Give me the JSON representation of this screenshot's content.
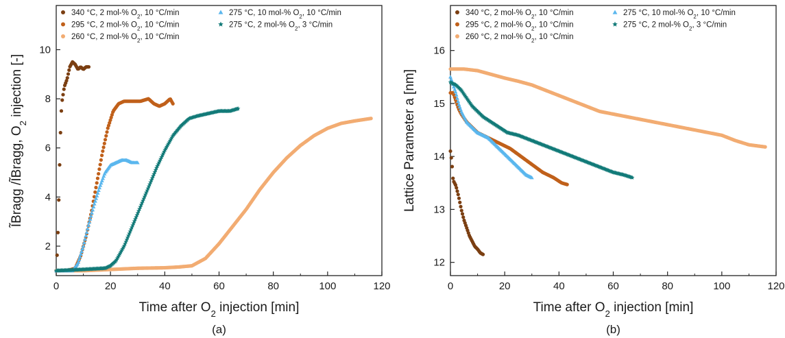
{
  "chart_data": [
    {
      "type": "scatter",
      "panel_label": "(a)",
      "xlabel": "Time after O₂ injection [min]",
      "ylabel": "ĨBragg /ĨBragg, O₂ injection [-]",
      "xlim": [
        0,
        120
      ],
      "ylim": [
        0.8,
        11.8
      ],
      "x_ticks": [
        0,
        20,
        40,
        60,
        80,
        100,
        120
      ],
      "y_ticks": [
        2,
        4,
        6,
        8,
        10
      ],
      "grid": false,
      "legend_position": "top-left",
      "series": [
        {
          "name": "340 °C, 2 mol-% O₂,  10 °C/min",
          "color": "#7b3f12",
          "marker": "circle",
          "x": [
            0,
            0.5,
            1,
            1.5,
            2,
            3,
            4,
            5,
            6,
            7,
            8,
            9,
            10,
            11,
            12
          ],
          "y": [
            1.0,
            2.0,
            4.1,
            6.4,
            7.8,
            8.5,
            8.8,
            9.3,
            9.5,
            9.4,
            9.2,
            9.3,
            9.2,
            9.3,
            9.3
          ]
        },
        {
          "name": "295 °C, 2 mol-% O₂,  10 °C/min",
          "color": "#c0601a",
          "marker": "circle",
          "x": [
            0,
            4,
            7,
            9,
            11,
            13,
            15,
            17,
            19,
            21,
            23,
            25,
            28,
            31,
            34,
            36,
            38,
            40,
            42,
            43
          ],
          "y": [
            1.0,
            1.0,
            1.1,
            1.6,
            2.4,
            3.4,
            4.6,
            5.8,
            6.8,
            7.5,
            7.8,
            7.9,
            7.9,
            7.9,
            8.0,
            7.8,
            7.7,
            7.8,
            8.0,
            7.8
          ]
        },
        {
          "name": "260 °C, 2 mol-% O₂,  10 °C/min",
          "color": "#f2ac72",
          "marker": "circle",
          "x": [
            0,
            10,
            20,
            30,
            40,
            45,
            50,
            55,
            60,
            65,
            70,
            75,
            80,
            85,
            90,
            95,
            100,
            105,
            110,
            116
          ],
          "y": [
            1.0,
            1.0,
            1.05,
            1.1,
            1.12,
            1.15,
            1.2,
            1.5,
            2.1,
            2.8,
            3.5,
            4.3,
            5.0,
            5.6,
            6.1,
            6.5,
            6.8,
            7.0,
            7.1,
            7.2
          ]
        },
        {
          "name": "275 °C, 10 mol-% O₂, 10 °C/min",
          "color": "#5ab7ee",
          "marker": "triangle",
          "x": [
            0,
            3,
            6,
            8,
            10,
            12,
            14,
            16,
            18,
            20,
            22,
            24,
            26,
            28,
            30
          ],
          "y": [
            1.0,
            1.0,
            1.0,
            1.3,
            2.0,
            2.9,
            3.7,
            4.4,
            5.0,
            5.3,
            5.4,
            5.5,
            5.5,
            5.4,
            5.4
          ]
        },
        {
          "name": "275 °C,   2 mol-% O₂,   3 °C/min",
          "color": "#127a78",
          "marker": "star",
          "x": [
            0,
            10,
            18,
            20,
            22,
            25,
            28,
            31,
            34,
            37,
            40,
            43,
            46,
            49,
            52,
            56,
            60,
            64,
            67
          ],
          "y": [
            1.0,
            1.05,
            1.1,
            1.2,
            1.4,
            2.0,
            2.8,
            3.6,
            4.4,
            5.2,
            5.9,
            6.5,
            6.9,
            7.2,
            7.3,
            7.4,
            7.5,
            7.5,
            7.6
          ]
        }
      ]
    },
    {
      "type": "scatter",
      "panel_label": "(b)",
      "xlabel": "Time after O₂ injection [min]",
      "ylabel": "Lattice Parameter a [nm]",
      "xlim": [
        0,
        120
      ],
      "ylim": [
        11.75,
        16.85
      ],
      "x_ticks": [
        0,
        20,
        40,
        60,
        80,
        100,
        120
      ],
      "y_ticks": [
        12,
        13,
        14,
        15,
        16
      ],
      "grid": false,
      "legend_position": "top-left",
      "series": [
        {
          "name": "340 °C, 2 mol-% O₂,  10 °C/min",
          "color": "#7b3f12",
          "marker": "circle",
          "x": [
            0,
            0.5,
            1,
            2,
            3,
            4,
            5,
            6,
            7,
            8,
            9,
            10,
            11,
            12
          ],
          "y": [
            14.1,
            13.9,
            13.55,
            13.45,
            13.25,
            13.0,
            12.8,
            12.65,
            12.5,
            12.4,
            12.3,
            12.25,
            12.18,
            12.15
          ]
        },
        {
          "name": "295 °C, 2 mol-% O₂,  10 °C/min",
          "color": "#c0601a",
          "marker": "circle",
          "x": [
            0,
            1,
            2,
            3,
            4,
            6,
            8,
            10,
            14,
            18,
            22,
            26,
            30,
            34,
            38,
            41,
            43
          ],
          "y": [
            15.2,
            15.2,
            15.05,
            14.9,
            14.8,
            14.65,
            14.55,
            14.45,
            14.35,
            14.25,
            14.15,
            14.0,
            13.85,
            13.7,
            13.6,
            13.5,
            13.47
          ]
        },
        {
          "name": "260 °C, 2 mol-% O₂,  10 °C/min",
          "color": "#f2ac72",
          "marker": "circle",
          "x": [
            0,
            5,
            10,
            15,
            20,
            25,
            30,
            35,
            40,
            45,
            50,
            55,
            60,
            65,
            70,
            75,
            80,
            85,
            90,
            95,
            100,
            105,
            110,
            116
          ],
          "y": [
            15.65,
            15.65,
            15.62,
            15.55,
            15.48,
            15.42,
            15.35,
            15.25,
            15.15,
            15.05,
            14.95,
            14.85,
            14.8,
            14.75,
            14.7,
            14.65,
            14.6,
            14.55,
            14.5,
            14.45,
            14.4,
            14.3,
            14.22,
            14.18
          ]
        },
        {
          "name": "275 °C, 10 mol-% O₂, 10 °C/min",
          "color": "#5ab7ee",
          "marker": "triangle",
          "x": [
            0,
            1,
            2,
            3,
            4,
            5,
            6,
            8,
            10,
            12,
            14,
            16,
            18,
            20,
            22,
            24,
            26,
            28,
            30
          ],
          "y": [
            15.5,
            15.35,
            15.2,
            15.0,
            14.85,
            14.75,
            14.65,
            14.55,
            14.45,
            14.4,
            14.35,
            14.25,
            14.15,
            14.05,
            13.95,
            13.85,
            13.75,
            13.65,
            13.6
          ]
        },
        {
          "name": "275 °C,   2 mol-% O₂,   3 °C/min",
          "color": "#127a78",
          "marker": "star",
          "x": [
            0,
            2,
            4,
            6,
            8,
            10,
            12,
            15,
            18,
            21,
            25,
            30,
            35,
            40,
            45,
            50,
            55,
            60,
            64,
            67
          ],
          "y": [
            15.4,
            15.35,
            15.25,
            15.1,
            14.95,
            14.85,
            14.75,
            14.65,
            14.55,
            14.45,
            14.4,
            14.3,
            14.2,
            14.1,
            14.0,
            13.9,
            13.8,
            13.7,
            13.65,
            13.6
          ]
        }
      ]
    }
  ]
}
